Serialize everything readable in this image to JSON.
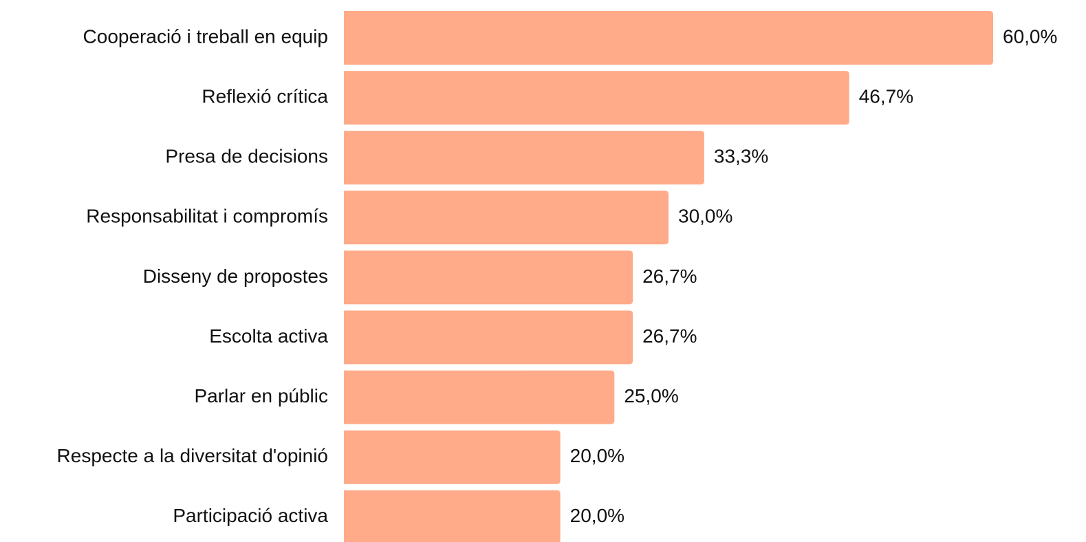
{
  "chart_data": {
    "type": "bar",
    "orientation": "horizontal",
    "color": "#ffab8a",
    "categories": [
      "Cooperació i treball en equip",
      "Reflexió crítica",
      "Presa de decisions",
      "Responsabilitat i compromís",
      "Disseny de propostes",
      "Escolta activa",
      "Parlar en públic",
      "Respecte a la diversitat d'opinió",
      "Participació activa"
    ],
    "values": [
      60.0,
      46.7,
      33.3,
      30.0,
      26.7,
      26.7,
      25.0,
      20.0,
      20.0
    ],
    "value_labels": [
      "60,0%",
      "46,7%",
      "33,3%",
      "30,0%",
      "26,7%",
      "26,7%",
      "25,0%",
      "20,0%",
      "20,0%"
    ]
  }
}
